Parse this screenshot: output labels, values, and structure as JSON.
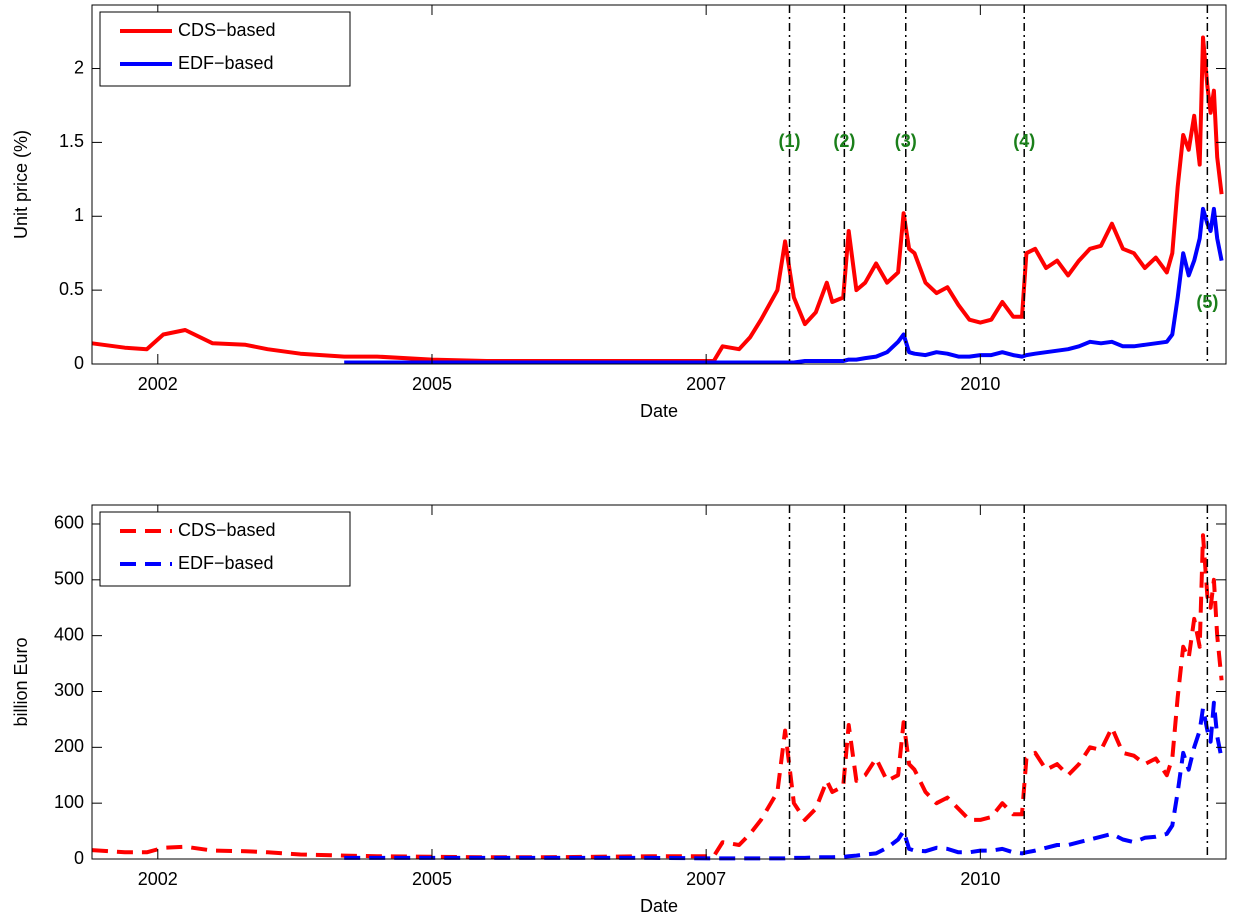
{
  "chart_data": [
    {
      "type": "line",
      "xlabel": "Date",
      "ylabel": "Unit price (%)",
      "x": [
        2001.9,
        2002.2,
        2002.4,
        2002.55,
        2002.75,
        2003.0,
        2003.3,
        2003.5,
        2003.8,
        2004.2,
        2004.5,
        2005.0,
        2005.5,
        2006.0,
        2006.5,
        2007.0,
        2007.57,
        2007.65,
        2007.8,
        2007.9,
        2008.0,
        2008.15,
        2008.22,
        2008.3,
        2008.4,
        2008.5,
        2008.6,
        2008.65,
        2008.75,
        2008.8,
        2008.87,
        2008.95,
        2009.05,
        2009.15,
        2009.25,
        2009.3,
        2009.35,
        2009.4,
        2009.5,
        2009.6,
        2009.7,
        2009.8,
        2009.9,
        2010.0,
        2010.1,
        2010.2,
        2010.3,
        2010.38,
        2010.42,
        2010.5,
        2010.6,
        2010.7,
        2010.8,
        2010.9,
        2011.0,
        2011.1,
        2011.2,
        2011.3,
        2011.4,
        2011.5,
        2011.6,
        2011.7,
        2011.75,
        2011.8,
        2011.85,
        2011.9,
        2011.95,
        2012.0,
        2012.03,
        2012.07,
        2012.1,
        2012.13,
        2012.16,
        2012.2
      ],
      "series": [
        {
          "name": "CDS−based",
          "color": "#ff0000",
          "values": [
            0.14,
            0.11,
            0.1,
            0.2,
            0.23,
            0.14,
            0.13,
            0.1,
            0.07,
            0.05,
            0.05,
            0.03,
            0.02,
            0.02,
            0.02,
            0.02,
            0.02,
            0.12,
            0.1,
            0.18,
            0.3,
            0.5,
            0.83,
            0.45,
            0.27,
            0.35,
            0.55,
            0.42,
            0.45,
            0.9,
            0.5,
            0.55,
            0.68,
            0.55,
            0.62,
            1.02,
            0.78,
            0.75,
            0.55,
            0.48,
            0.52,
            0.4,
            0.3,
            0.28,
            0.3,
            0.42,
            0.32,
            0.32,
            0.75,
            0.78,
            0.65,
            0.7,
            0.6,
            0.7,
            0.78,
            0.8,
            0.95,
            0.78,
            0.75,
            0.65,
            0.72,
            0.62,
            0.75,
            1.2,
            1.55,
            1.45,
            1.68,
            1.35,
            2.21,
            1.88,
            1.7,
            1.85,
            1.4,
            1.15
          ]
        },
        {
          "name": "EDF−based",
          "color": "#0000ff",
          "values": [
            null,
            null,
            null,
            null,
            null,
            null,
            null,
            null,
            null,
            0.01,
            0.01,
            0.01,
            0.01,
            0.01,
            0.01,
            0.01,
            0.01,
            0.01,
            0.01,
            0.01,
            0.01,
            0.01,
            0.01,
            0.01,
            0.02,
            0.02,
            0.02,
            0.02,
            0.02,
            0.03,
            0.03,
            0.04,
            0.05,
            0.08,
            0.15,
            0.2,
            0.08,
            0.07,
            0.06,
            0.08,
            0.07,
            0.05,
            0.05,
            0.06,
            0.06,
            0.08,
            0.06,
            0.05,
            0.06,
            0.07,
            0.08,
            0.09,
            0.1,
            0.12,
            0.15,
            0.14,
            0.15,
            0.12,
            0.12,
            0.13,
            0.14,
            0.15,
            0.2,
            0.45,
            0.75,
            0.6,
            0.7,
            0.85,
            1.05,
            0.95,
            0.9,
            1.05,
            0.85,
            0.7
          ]
        }
      ],
      "line_style": "solid",
      "xlim": [
        2001.9,
        2012.24
      ],
      "xticks": [
        {
          "value": 2002.5,
          "label": "2002"
        },
        {
          "value": 2005,
          "label": "2005"
        },
        {
          "value": 2007.5,
          "label": "2007"
        },
        {
          "value": 2010,
          "label": "2010"
        }
      ],
      "ylim": [
        0,
        2.43
      ],
      "yticks": [
        0,
        0.5,
        1,
        1.5,
        2
      ],
      "vlines": [
        2008.26,
        2008.76,
        2009.32,
        2010.4,
        2012.07
      ],
      "annotations": [
        "(1)",
        "(2)",
        "(3)",
        "(4)",
        "(5)"
      ],
      "annotation_color": "#1a7f1a",
      "legend": "upper left",
      "grid": false
    },
    {
      "type": "line",
      "xlabel": "Date",
      "ylabel": "billion Euro",
      "x": [
        2001.9,
        2002.2,
        2002.4,
        2002.55,
        2002.75,
        2003.0,
        2003.3,
        2003.5,
        2003.8,
        2004.2,
        2004.5,
        2005.0,
        2005.5,
        2006.0,
        2006.5,
        2007.0,
        2007.57,
        2007.65,
        2007.8,
        2007.9,
        2008.0,
        2008.15,
        2008.22,
        2008.3,
        2008.4,
        2008.5,
        2008.6,
        2008.65,
        2008.75,
        2008.8,
        2008.87,
        2008.95,
        2009.05,
        2009.15,
        2009.25,
        2009.3,
        2009.35,
        2009.4,
        2009.5,
        2009.6,
        2009.7,
        2009.8,
        2009.9,
        2010.0,
        2010.1,
        2010.2,
        2010.3,
        2010.38,
        2010.42,
        2010.5,
        2010.6,
        2010.7,
        2010.8,
        2010.9,
        2011.0,
        2011.1,
        2011.2,
        2011.3,
        2011.4,
        2011.5,
        2011.6,
        2011.7,
        2011.75,
        2011.8,
        2011.85,
        2011.9,
        2011.95,
        2012.0,
        2012.03,
        2012.07,
        2012.1,
        2012.13,
        2012.16,
        2012.2
      ],
      "series": [
        {
          "name": "CDS−based",
          "color": "#ff0000",
          "values": [
            16,
            12,
            12,
            20,
            22,
            15,
            14,
            12,
            8,
            6,
            5,
            4,
            3,
            3,
            4,
            5,
            5,
            30,
            25,
            45,
            70,
            120,
            230,
            100,
            70,
            90,
            140,
            120,
            130,
            240,
            140,
            150,
            180,
            140,
            150,
            245,
            170,
            160,
            120,
            100,
            110,
            90,
            70,
            70,
            75,
            100,
            80,
            80,
            180,
            190,
            160,
            170,
            150,
            170,
            200,
            195,
            235,
            190,
            185,
            170,
            180,
            150,
            180,
            290,
            380,
            360,
            430,
            380,
            580,
            470,
            450,
            500,
            400,
            320
          ]
        },
        {
          "name": "EDF−based",
          "color": "#0000ff",
          "values": [
            null,
            null,
            null,
            null,
            null,
            null,
            null,
            null,
            null,
            2,
            2,
            2,
            2,
            2,
            2,
            2,
            1,
            1,
            1,
            1,
            1,
            1,
            1,
            2,
            2,
            3,
            3,
            3,
            4,
            5,
            6,
            8,
            10,
            20,
            35,
            50,
            18,
            15,
            14,
            20,
            18,
            12,
            12,
            15,
            15,
            18,
            12,
            10,
            12,
            15,
            20,
            25,
            25,
            30,
            35,
            40,
            45,
            35,
            30,
            38,
            40,
            45,
            60,
            120,
            190,
            160,
            200,
            230,
            270,
            230,
            210,
            280,
            220,
            180
          ]
        }
      ],
      "line_style": "dashed",
      "xlim": [
        2001.9,
        2012.24
      ],
      "xticks": [
        {
          "value": 2002.5,
          "label": "2002"
        },
        {
          "value": 2005,
          "label": "2005"
        },
        {
          "value": 2007.5,
          "label": "2007"
        },
        {
          "value": 2010,
          "label": "2010"
        }
      ],
      "ylim": [
        0,
        634
      ],
      "yticks": [
        0,
        100,
        200,
        300,
        400,
        500,
        600
      ],
      "vlines": [
        2008.26,
        2008.76,
        2009.32,
        2010.4,
        2012.07
      ],
      "legend": "upper left",
      "grid": false
    }
  ]
}
